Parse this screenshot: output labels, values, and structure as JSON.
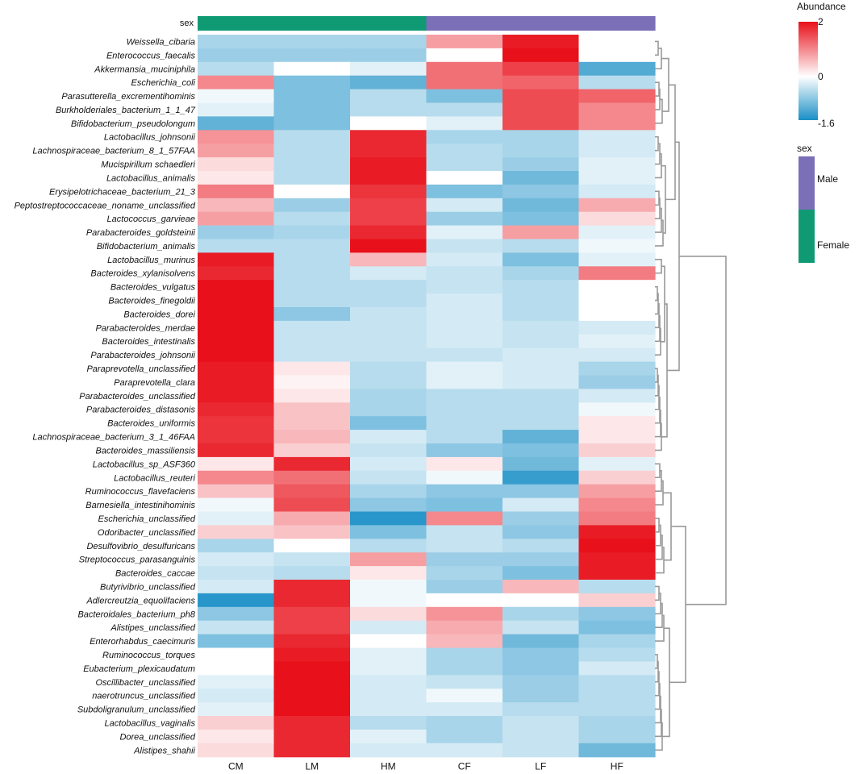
{
  "chart_data": {
    "type": "heatmap",
    "annotation_title": "sex",
    "columns": [
      "CM",
      "LM",
      "HM",
      "CF",
      "LF",
      "HF"
    ],
    "column_sex": [
      "Female",
      "Female",
      "Female",
      "Male",
      "Male",
      "Male"
    ],
    "rows": [
      "Weissella_cibaria",
      "Enterococcus_faecalis",
      "Akkermansia_muciniphila",
      "Escherichia_coli",
      "Parasutterella_excrementihominis",
      "Burkholderiales_bacterium_1_1_47",
      "Bifidobacterium_pseudolongum",
      "Lactobacillus_johnsonii",
      "Lachnospiraceae_bacterium_8_1_57FAA",
      "Mucispirillum schaedleri",
      "Lactobacillus_animalis",
      "Erysipelotrichaceae_bacterium_21_3",
      "Peptostreptococcaceae_noname_unclassified",
      "Lactococcus_garvieae",
      "Parabacteroides_goldsteinii",
      "Bifidobacterium_animalis",
      "Lactobacillus_murinus",
      "Bacteroides_xylanisolvens",
      "Bacteroides_vulgatus",
      "Bacteroides_finegoldii",
      "Bacteroides_dorei",
      "Parabacteroides_merdae",
      "Bacteroides_intestinalis",
      "Parabacteroides_johnsonii",
      "Paraprevotella_unclassified",
      "Paraprevotella_clara",
      "Parabacteroides_unclassified",
      "Parabacteroides_distasonis",
      "Bacteroides_uniformis",
      "Lachnospiraceae_bacterium_3_1_46FAA",
      "Bacteroides_massiliensis",
      "Lactobacillus_sp_ASF360",
      "Lactobacillus_reuteri",
      "Ruminococcus_flavefaciens",
      "Barnesiella_intestinihominis",
      "Escherichia_unclassified",
      "Odoribacter_unclassified",
      "Desulfovibrio_desulfuricans",
      "Streptococcus_parasanguinis",
      "Bacteroides_caccae",
      "Butyrivibrio_unclassified",
      "Adlercreutzia_equolifaciens",
      "Bacteroidales_bacterium_ph8",
      "Alistipes_unclassified",
      "Enterorhabdus_caecimuris",
      "Ruminococcus_torques",
      "Eubacterium_plexicaudatum",
      "Oscillibacter_unclassified",
      "naerotruncus_unclassified",
      "Subdoligranulum_unclassified",
      "Lactobacillus_vaginalis",
      "Dorea_unclassified",
      "Alistipes_shahii"
    ],
    "values": [
      [
        -0.6,
        -0.6,
        -0.6,
        0.8,
        1.9,
        0.0
      ],
      [
        -0.7,
        -0.7,
        -0.7,
        0.0,
        2.0,
        0.0
      ],
      [
        -0.5,
        0.0,
        -0.2,
        1.2,
        1.6,
        -1.2
      ],
      [
        1.0,
        -0.9,
        -1.1,
        1.2,
        1.3,
        -0.5
      ],
      [
        -0.1,
        -0.9,
        -0.5,
        -0.9,
        1.5,
        1.3
      ],
      [
        -0.2,
        -0.9,
        -0.5,
        -0.5,
        1.5,
        1.0
      ],
      [
        -1.1,
        -0.9,
        0.0,
        -0.2,
        1.5,
        1.0
      ],
      [
        0.9,
        -0.5,
        1.8,
        -0.6,
        -0.6,
        -0.3
      ],
      [
        0.8,
        -0.5,
        1.8,
        -0.5,
        -0.6,
        -0.3
      ],
      [
        0.3,
        -0.5,
        1.9,
        -0.5,
        -0.7,
        -0.2
      ],
      [
        0.2,
        -0.5,
        1.9,
        0.0,
        -1.0,
        -0.2
      ],
      [
        1.1,
        0.0,
        1.7,
        -0.9,
        -0.8,
        -0.3
      ],
      [
        0.6,
        -0.7,
        1.6,
        -0.3,
        -1.0,
        0.7
      ],
      [
        0.8,
        -0.5,
        1.6,
        -0.7,
        -0.9,
        0.3
      ],
      [
        -0.7,
        -0.6,
        1.8,
        -0.2,
        0.8,
        -0.2
      ],
      [
        -0.5,
        -0.5,
        2.0,
        -0.4,
        -0.5,
        -0.1
      ],
      [
        1.9,
        -0.5,
        0.6,
        -0.3,
        -0.9,
        -0.2
      ],
      [
        1.8,
        -0.5,
        -0.3,
        -0.4,
        -0.6,
        1.1
      ],
      [
        2.0,
        -0.5,
        -0.5,
        -0.4,
        -0.5,
        0.0
      ],
      [
        2.0,
        -0.5,
        -0.5,
        -0.3,
        -0.5,
        0.0
      ],
      [
        2.0,
        -0.8,
        -0.4,
        -0.3,
        -0.5,
        0.0
      ],
      [
        2.0,
        -0.4,
        -0.4,
        -0.3,
        -0.4,
        -0.3
      ],
      [
        2.0,
        -0.4,
        -0.4,
        -0.3,
        -0.4,
        -0.2
      ],
      [
        2.0,
        -0.4,
        -0.4,
        -0.4,
        -0.3,
        -0.3
      ],
      [
        1.9,
        0.2,
        -0.5,
        -0.2,
        -0.3,
        -0.6
      ],
      [
        1.9,
        0.1,
        -0.5,
        -0.2,
        -0.3,
        -0.7
      ],
      [
        1.9,
        0.2,
        -0.6,
        -0.5,
        -0.5,
        -0.3
      ],
      [
        1.8,
        0.5,
        -0.6,
        -0.5,
        -0.5,
        -0.1
      ],
      [
        1.7,
        0.5,
        -0.9,
        -0.5,
        -0.5,
        0.2
      ],
      [
        1.7,
        0.6,
        -0.3,
        -0.5,
        -1.1,
        0.2
      ],
      [
        1.8,
        0.4,
        -0.4,
        -0.8,
        -0.9,
        0.4
      ],
      [
        0.2,
        1.8,
        -0.3,
        0.2,
        -1.0,
        -0.2
      ],
      [
        1.0,
        1.2,
        -0.4,
        -0.1,
        -1.4,
        0.4
      ],
      [
        0.5,
        1.4,
        -0.6,
        -0.8,
        -0.8,
        0.8
      ],
      [
        -0.1,
        1.5,
        -0.8,
        -0.9,
        -0.3,
        1.0
      ],
      [
        -0.2,
        0.7,
        -1.5,
        1.0,
        -0.7,
        1.1
      ],
      [
        0.4,
        0.5,
        -0.9,
        -0.4,
        -0.8,
        1.9
      ],
      [
        -0.6,
        0.0,
        -0.5,
        -0.4,
        -0.5,
        2.0
      ],
      [
        -0.3,
        -0.4,
        0.8,
        -0.7,
        -0.7,
        1.9
      ],
      [
        -0.4,
        -0.5,
        0.2,
        -0.6,
        -0.9,
        1.9
      ],
      [
        -0.3,
        1.8,
        -0.1,
        -0.7,
        0.6,
        -0.5
      ],
      [
        -1.5,
        1.8,
        -0.1,
        0.0,
        0.0,
        0.4
      ],
      [
        -0.8,
        1.6,
        0.3,
        0.9,
        -0.6,
        -0.8
      ],
      [
        -0.4,
        1.6,
        -0.3,
        0.7,
        -0.4,
        -0.9
      ],
      [
        -0.9,
        1.8,
        0.0,
        0.6,
        -1.0,
        -0.6
      ],
      [
        0.0,
        1.9,
        -0.2,
        -0.6,
        -0.8,
        -0.5
      ],
      [
        0.0,
        2.0,
        -0.2,
        -0.6,
        -0.8,
        -0.3
      ],
      [
        -0.2,
        2.0,
        -0.3,
        -0.4,
        -0.7,
        -0.5
      ],
      [
        -0.3,
        2.0,
        -0.3,
        -0.1,
        -0.7,
        -0.5
      ],
      [
        -0.2,
        2.0,
        -0.3,
        -0.3,
        -0.5,
        -0.5
      ],
      [
        0.4,
        1.8,
        -0.5,
        -0.6,
        -0.4,
        -0.6
      ],
      [
        0.2,
        1.8,
        -0.2,
        -0.6,
        -0.4,
        -0.6
      ],
      [
        0.3,
        1.8,
        -0.3,
        -0.3,
        -0.4,
        -1.0
      ]
    ],
    "color_scale": {
      "title": "Abundance",
      "min": -1.6,
      "max": 2,
      "mid": 0,
      "tick_labels": [
        "2",
        "0",
        "-1.6"
      ],
      "low_color": "#1a8fc6",
      "mid_color": "#ffffff",
      "high_color": "#e8101a"
    },
    "sex_legend": {
      "title": "sex",
      "entries": [
        {
          "label": "Male",
          "color": "#7b6fb8"
        },
        {
          "label": "Female",
          "color": "#0f9a74"
        }
      ]
    },
    "dendrogram_color": "#999999"
  }
}
